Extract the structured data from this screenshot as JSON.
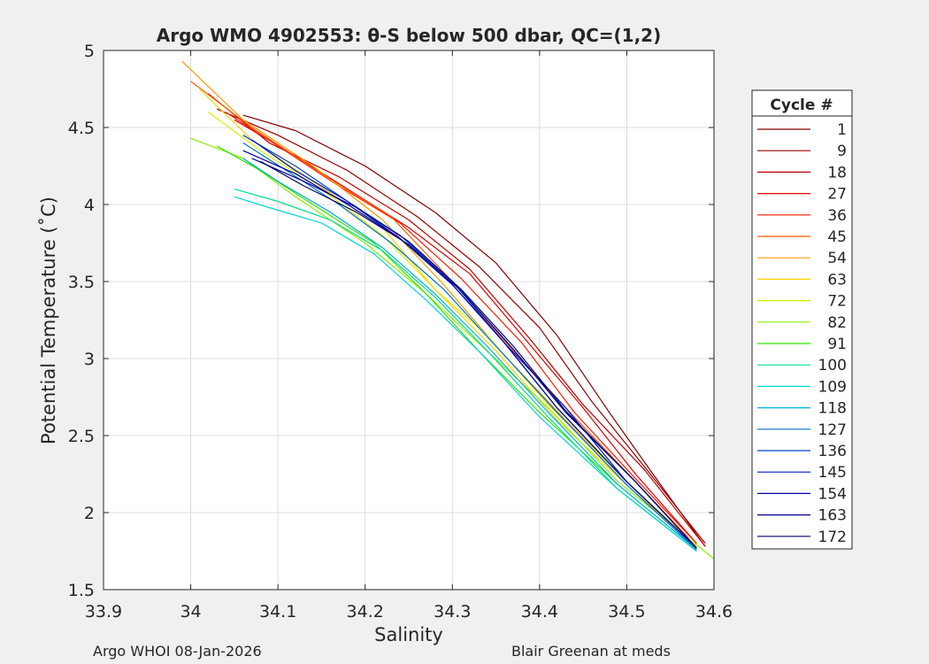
{
  "chart_data": {
    "type": "line",
    "title": "Argo WMO 4902553: θ-S below 500 dbar,  QC=(1,2)",
    "xlabel": "Salinity",
    "ylabel": "Potential Temperature (˚C)",
    "xlim": [
      33.9,
      34.6
    ],
    "ylim": [
      1.5,
      5
    ],
    "xticks": [
      33.9,
      34,
      34.1,
      34.2,
      34.3,
      34.4,
      34.5,
      34.6
    ],
    "xtick_labels": [
      "33.9",
      "34",
      "34.1",
      "34.2",
      "34.3",
      "34.4",
      "34.5",
      "34.6"
    ],
    "yticks": [
      1.5,
      2,
      2.5,
      3,
      3.5,
      4,
      4.5,
      5
    ],
    "ytick_labels": [
      "1.5",
      "2",
      "2.5",
      "3",
      "3.5",
      "4",
      "4.5",
      "5"
    ],
    "grid": true,
    "legend_title": "Cycle #",
    "legend_position": "outside-right",
    "series": [
      {
        "name": "1",
        "color": "#800000",
        "x": [
          34.06,
          34.12,
          34.2,
          34.28,
          34.35,
          34.42,
          34.48,
          34.53,
          34.59
        ],
        "y": [
          4.58,
          4.48,
          4.25,
          3.95,
          3.62,
          3.15,
          2.65,
          2.25,
          1.78
        ]
      },
      {
        "name": "9",
        "color": "#9a0000",
        "x": [
          34.03,
          34.1,
          34.18,
          34.26,
          34.33,
          34.4,
          34.46,
          34.52,
          34.59
        ],
        "y": [
          4.62,
          4.45,
          4.22,
          3.92,
          3.6,
          3.2,
          2.72,
          2.3,
          1.8
        ]
      },
      {
        "name": "18",
        "color": "#c00000",
        "x": [
          34.02,
          34.09,
          34.17,
          34.25,
          34.32,
          34.39,
          34.45,
          34.52,
          34.59
        ],
        "y": [
          4.72,
          4.4,
          4.18,
          3.9,
          3.58,
          3.12,
          2.7,
          2.28,
          1.78
        ]
      },
      {
        "name": "27",
        "color": "#e00000",
        "x": [
          34.05,
          34.11,
          34.18,
          34.25,
          34.32,
          34.38,
          34.45,
          34.51,
          34.58
        ],
        "y": [
          4.55,
          4.35,
          4.1,
          3.85,
          3.55,
          3.15,
          2.68,
          2.25,
          1.8
        ]
      },
      {
        "name": "36",
        "color": "#ff1a00",
        "x": [
          34.04,
          34.1,
          34.17,
          34.24,
          34.31,
          34.38,
          34.44,
          34.51,
          34.58
        ],
        "y": [
          4.6,
          4.38,
          4.12,
          3.88,
          3.52,
          3.1,
          2.65,
          2.22,
          1.8
        ]
      },
      {
        "name": "45",
        "color": "#ff5a00",
        "x": [
          34.0,
          34.07,
          34.15,
          34.23,
          34.3,
          34.37,
          34.44,
          34.51,
          34.58
        ],
        "y": [
          4.8,
          4.5,
          4.2,
          3.92,
          3.5,
          3.05,
          2.62,
          2.2,
          1.78
        ]
      },
      {
        "name": "54",
        "color": "#ff9a00",
        "x": [
          33.99,
          34.06,
          34.14,
          34.22,
          34.29,
          34.36,
          34.43,
          34.5,
          34.58
        ],
        "y": [
          4.93,
          4.55,
          4.25,
          3.9,
          3.48,
          3.02,
          2.6,
          2.2,
          1.78
        ]
      },
      {
        "name": "63",
        "color": "#ffd200",
        "x": [
          34.01,
          34.07,
          34.14,
          34.22,
          34.28,
          34.35,
          34.42,
          34.5,
          34.58
        ],
        "y": [
          4.75,
          4.42,
          4.15,
          3.85,
          3.45,
          3.05,
          2.6,
          2.18,
          1.78
        ]
      },
      {
        "name": "72",
        "color": "#d8ee00",
        "x": [
          34.02,
          34.08,
          34.15,
          34.22,
          34.28,
          34.34,
          34.41,
          34.5,
          34.58
        ],
        "y": [
          4.6,
          4.35,
          4.1,
          3.8,
          3.45,
          3.15,
          2.7,
          2.2,
          1.78
        ]
      },
      {
        "name": "82",
        "color": "#8aee00",
        "x": [
          34.0,
          34.06,
          34.12,
          34.2,
          34.27,
          34.33,
          34.41,
          34.49,
          34.6
        ],
        "y": [
          4.43,
          4.3,
          4.05,
          3.75,
          3.42,
          3.1,
          2.68,
          2.2,
          1.7
        ]
      },
      {
        "name": "91",
        "color": "#2ee800",
        "x": [
          34.03,
          34.08,
          34.14,
          34.21,
          34.27,
          34.33,
          34.4,
          34.49,
          34.58
        ],
        "y": [
          4.38,
          4.22,
          4.0,
          3.75,
          3.42,
          3.05,
          2.65,
          2.18,
          1.76
        ]
      },
      {
        "name": "100",
        "color": "#00e08a",
        "x": [
          34.05,
          34.1,
          34.16,
          34.22,
          34.28,
          34.34,
          34.41,
          34.49,
          34.58
        ],
        "y": [
          4.1,
          4.02,
          3.9,
          3.7,
          3.4,
          3.05,
          2.62,
          2.15,
          1.75
        ]
      },
      {
        "name": "109",
        "color": "#00d8d8",
        "x": [
          34.05,
          34.09,
          34.15,
          34.21,
          34.27,
          34.33,
          34.4,
          34.49,
          34.58
        ],
        "y": [
          4.05,
          3.98,
          3.88,
          3.68,
          3.38,
          3.05,
          2.62,
          2.15,
          1.75
        ]
      },
      {
        "name": "118",
        "color": "#00b0e0",
        "x": [
          34.06,
          34.1,
          34.16,
          34.22,
          34.28,
          34.34,
          34.41,
          34.49,
          34.58
        ],
        "y": [
          4.3,
          4.15,
          3.95,
          3.72,
          3.42,
          3.08,
          2.65,
          2.18,
          1.76
        ]
      },
      {
        "name": "127",
        "color": "#0070c8",
        "x": [
          34.06,
          34.11,
          34.17,
          34.23,
          34.29,
          34.35,
          34.42,
          34.5,
          34.58
        ],
        "y": [
          4.4,
          4.22,
          4.0,
          3.75,
          3.45,
          3.08,
          2.65,
          2.18,
          1.76
        ]
      },
      {
        "name": "136",
        "color": "#0040c8",
        "x": [
          34.06,
          34.12,
          34.18,
          34.24,
          34.3,
          34.36,
          34.42,
          34.5,
          34.58
        ],
        "y": [
          4.45,
          4.25,
          4.02,
          3.8,
          3.5,
          3.1,
          2.68,
          2.2,
          1.77
        ]
      },
      {
        "name": "145",
        "color": "#0018c0",
        "x": [
          34.07,
          34.12,
          34.18,
          34.24,
          34.3,
          34.36,
          34.43,
          34.5,
          34.58
        ],
        "y": [
          4.42,
          4.22,
          4.02,
          3.78,
          3.48,
          3.1,
          2.68,
          2.2,
          1.77
        ]
      },
      {
        "name": "154",
        "color": "#0000a8",
        "x": [
          34.06,
          34.12,
          34.18,
          34.24,
          34.3,
          34.36,
          34.42,
          34.5,
          34.58
        ],
        "y": [
          4.35,
          4.2,
          4.0,
          3.78,
          3.48,
          3.1,
          2.68,
          2.2,
          1.77
        ]
      },
      {
        "name": "163",
        "color": "#000090",
        "x": [
          34.07,
          34.13,
          34.19,
          34.25,
          34.31,
          34.37,
          34.43,
          34.51,
          34.58
        ],
        "y": [
          4.3,
          4.15,
          3.98,
          3.76,
          3.45,
          3.08,
          2.66,
          2.2,
          1.77
        ]
      },
      {
        "name": "172",
        "color": "#000070",
        "x": [
          34.08,
          34.13,
          34.19,
          34.25,
          34.31,
          34.37,
          34.43,
          34.51,
          34.58
        ],
        "y": [
          4.28,
          4.12,
          3.95,
          3.74,
          3.44,
          3.06,
          2.65,
          2.2,
          1.77
        ]
      }
    ]
  },
  "footer": {
    "left": "Argo WHOI 08-Jan-2026",
    "right": "Blair Greenan at meds"
  }
}
